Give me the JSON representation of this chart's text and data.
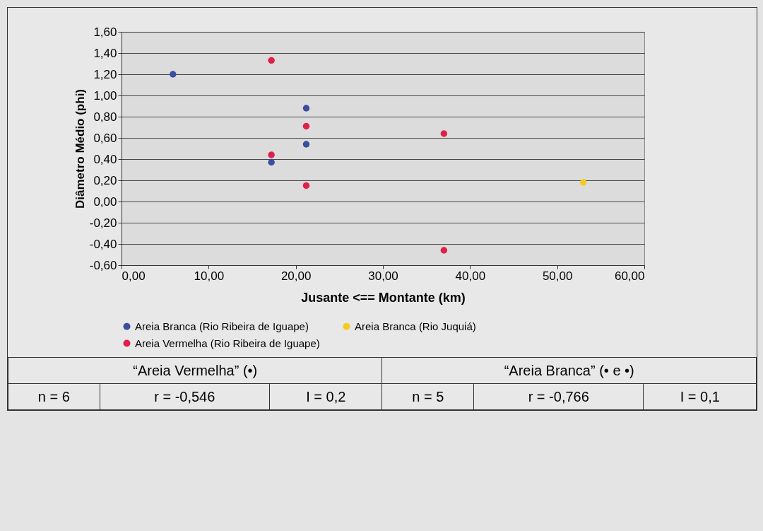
{
  "chart_data": {
    "type": "scatter",
    "xlabel": "Jusante <== Montante (km)",
    "ylabel": "Diâmetro Médio (phi)",
    "series": [
      {
        "name": "Areia Branca (Rio Ribeira de Iguape)",
        "color": "#3a4fa0",
        "x": [
          5.9,
          21.2,
          21.2,
          17.2
        ],
        "values": [
          1.2,
          0.88,
          0.54,
          0.37
        ]
      },
      {
        "name": "Areia Branca (Rio Juquiá)",
        "color": "#f2cc1e",
        "x": [
          53.0
        ],
        "values": [
          0.18
        ]
      },
      {
        "name": "Areia Vermelha (Rio Ribeira de Iguape)",
        "color": "#e0204a",
        "x": [
          17.2,
          21.2,
          17.2,
          21.2,
          37.0,
          37.0
        ],
        "values": [
          1.33,
          0.71,
          0.44,
          0.15,
          0.64,
          -0.46
        ]
      }
    ],
    "xlim": [
      0,
      60
    ],
    "xticks": [
      {
        "value": 0,
        "label": "0,00"
      },
      {
        "value": 10,
        "label": "10,00"
      },
      {
        "value": 20,
        "label": "20,00"
      },
      {
        "value": 30,
        "label": "30,00"
      },
      {
        "value": 40,
        "label": "40,00"
      },
      {
        "value": 50,
        "label": "50,00"
      },
      {
        "value": 60,
        "label": "60,00"
      }
    ],
    "ylim": [
      -0.6,
      1.6
    ],
    "yticks": [
      {
        "value": -0.6,
        "label": "-0,60"
      },
      {
        "value": -0.4,
        "label": "-0,40"
      },
      {
        "value": -0.2,
        "label": "-0,20"
      },
      {
        "value": 0,
        "label": "0,00"
      },
      {
        "value": 0.2,
        "label": "0,20"
      },
      {
        "value": 0.4,
        "label": "0,40"
      },
      {
        "value": 0.6,
        "label": "0,60"
      },
      {
        "value": 0.8,
        "label": "0,80"
      },
      {
        "value": 1.0,
        "label": "1,00"
      },
      {
        "value": 1.2,
        "label": "1,20"
      },
      {
        "value": 1.4,
        "label": "1,40"
      },
      {
        "value": 1.6,
        "label": "1,60"
      }
    ],
    "grid": "y",
    "legend": "bottom",
    "marker": "circle",
    "annotations": [
      "“Areia Vermelha” (•)",
      "“Areia Branca” (• e •)",
      "n = 6",
      "r = -0,546",
      "I = 0,2",
      "n = 5",
      "r = -0,766",
      "I = 0,1"
    ]
  }
}
